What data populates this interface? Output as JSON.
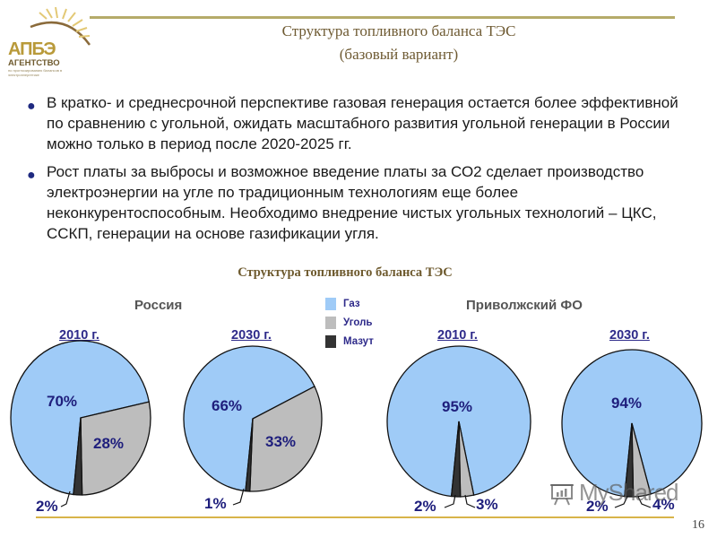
{
  "header": {
    "logo_abbrev": "АПБЭ",
    "logo_name": "АГЕНТСТВО",
    "logo_tagline": "по прогнозированию балансов в электроэнергетике",
    "title_line1": "Структура топливного баланса ТЭС",
    "title_line2": "(базовый вариант)"
  },
  "bullets": [
    {
      "text": "В кратко- и среднесрочной перспективе газовая генерация остается более эффективной по сравнению с угольной, ожидать масштабного развития угольной генерации в России можно только в период после 2020-2025 гг."
    },
    {
      "text": "Рост платы за выбросы и возможное введение платы за СО2 сделает производство электроэнергии на угле по традиционным технологиям еще более неконкурентоспособным. Необходимо внедрение чистых угольных технологий – ЦКС, ССКП, генерации на основе газификации угля."
    }
  ],
  "colors": {
    "gas": "#9fcbf7",
    "coal": "#bdbdbd",
    "fuel_oil": "#333333",
    "label": "#1e1e7c",
    "accent_rule": "#b5ab6a"
  },
  "chart_data": {
    "type": "pie",
    "title": "Структура топливного баланса ТЭС",
    "legend": [
      "Газ",
      "Уголь",
      "Мазут"
    ],
    "legend_position": "center-top",
    "groups": [
      {
        "region": "Россия",
        "charts": [
          {
            "year": "2010 г.",
            "slices": [
              {
                "name": "Газ",
                "value": 70,
                "label": "70%"
              },
              {
                "name": "Уголь",
                "value": 28,
                "label": "28%"
              },
              {
                "name": "Мазут",
                "value": 2,
                "label": "2%"
              }
            ]
          },
          {
            "year": "2030 г.",
            "slices": [
              {
                "name": "Газ",
                "value": 66,
                "label": "66%"
              },
              {
                "name": "Уголь",
                "value": 33,
                "label": "33%"
              },
              {
                "name": "Мазут",
                "value": 1,
                "label": "1%"
              }
            ]
          }
        ]
      },
      {
        "region": "Приволжский ФО",
        "charts": [
          {
            "year": "2010 г.",
            "slices": [
              {
                "name": "Газ",
                "value": 95,
                "label": "95%"
              },
              {
                "name": "Уголь",
                "value": 3,
                "label": "3%"
              },
              {
                "name": "Мазут",
                "value": 2,
                "label": "2%"
              }
            ]
          },
          {
            "year": "2030 г.",
            "slices": [
              {
                "name": "Газ",
                "value": 94,
                "label": "94%"
              },
              {
                "name": "Уголь",
                "value": 4,
                "label": "4%"
              },
              {
                "name": "Мазут",
                "value": 2,
                "label": "2%"
              }
            ]
          }
        ]
      }
    ]
  },
  "watermark": "MyShared",
  "page_number": "16"
}
